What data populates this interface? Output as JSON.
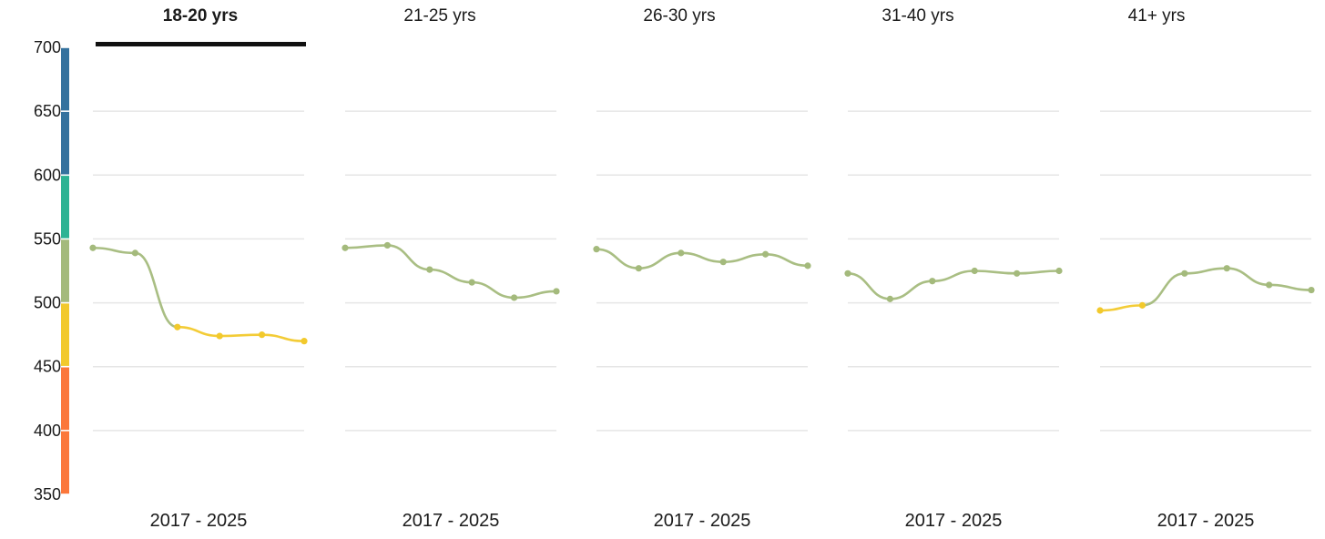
{
  "chart_data": {
    "type": "line",
    "ylim": [
      350,
      700
    ],
    "yticks": [
      "700",
      "650",
      "600",
      "550",
      "500",
      "450",
      "400",
      "350"
    ],
    "active_panel": 0,
    "color_scale": [
      {
        "from": 650,
        "to": 700,
        "color": "#35729e"
      },
      {
        "from": 600,
        "to": 650,
        "color": "#35729e"
      },
      {
        "from": 550,
        "to": 600,
        "color": "#2db394"
      },
      {
        "from": 500,
        "to": 550,
        "color": "#a4ba7c"
      },
      {
        "from": 450,
        "to": 500,
        "color": "#f2c92c"
      },
      {
        "from": 400,
        "to": 450,
        "color": "#fb773b"
      },
      {
        "from": 350,
        "to": 400,
        "color": "#fb773b"
      }
    ],
    "panels": [
      {
        "label": "18-20 yrs",
        "period": "2017 - 2025",
        "values": [
          543,
          539,
          481,
          474,
          475,
          470
        ]
      },
      {
        "label": "21-25 yrs",
        "period": "2017 - 2025",
        "values": [
          543,
          545,
          526,
          516,
          504,
          509
        ]
      },
      {
        "label": "26-30 yrs",
        "period": "2017 - 2025",
        "values": [
          542,
          527,
          539,
          532,
          538,
          529
        ]
      },
      {
        "label": "31-40 yrs",
        "period": "2017 - 2025",
        "values": [
          523,
          503,
          517,
          525,
          523,
          525
        ]
      },
      {
        "label": "41+ yrs",
        "period": "2017 - 2025",
        "values": [
          494,
          498,
          523,
          527,
          514,
          510
        ]
      }
    ]
  }
}
